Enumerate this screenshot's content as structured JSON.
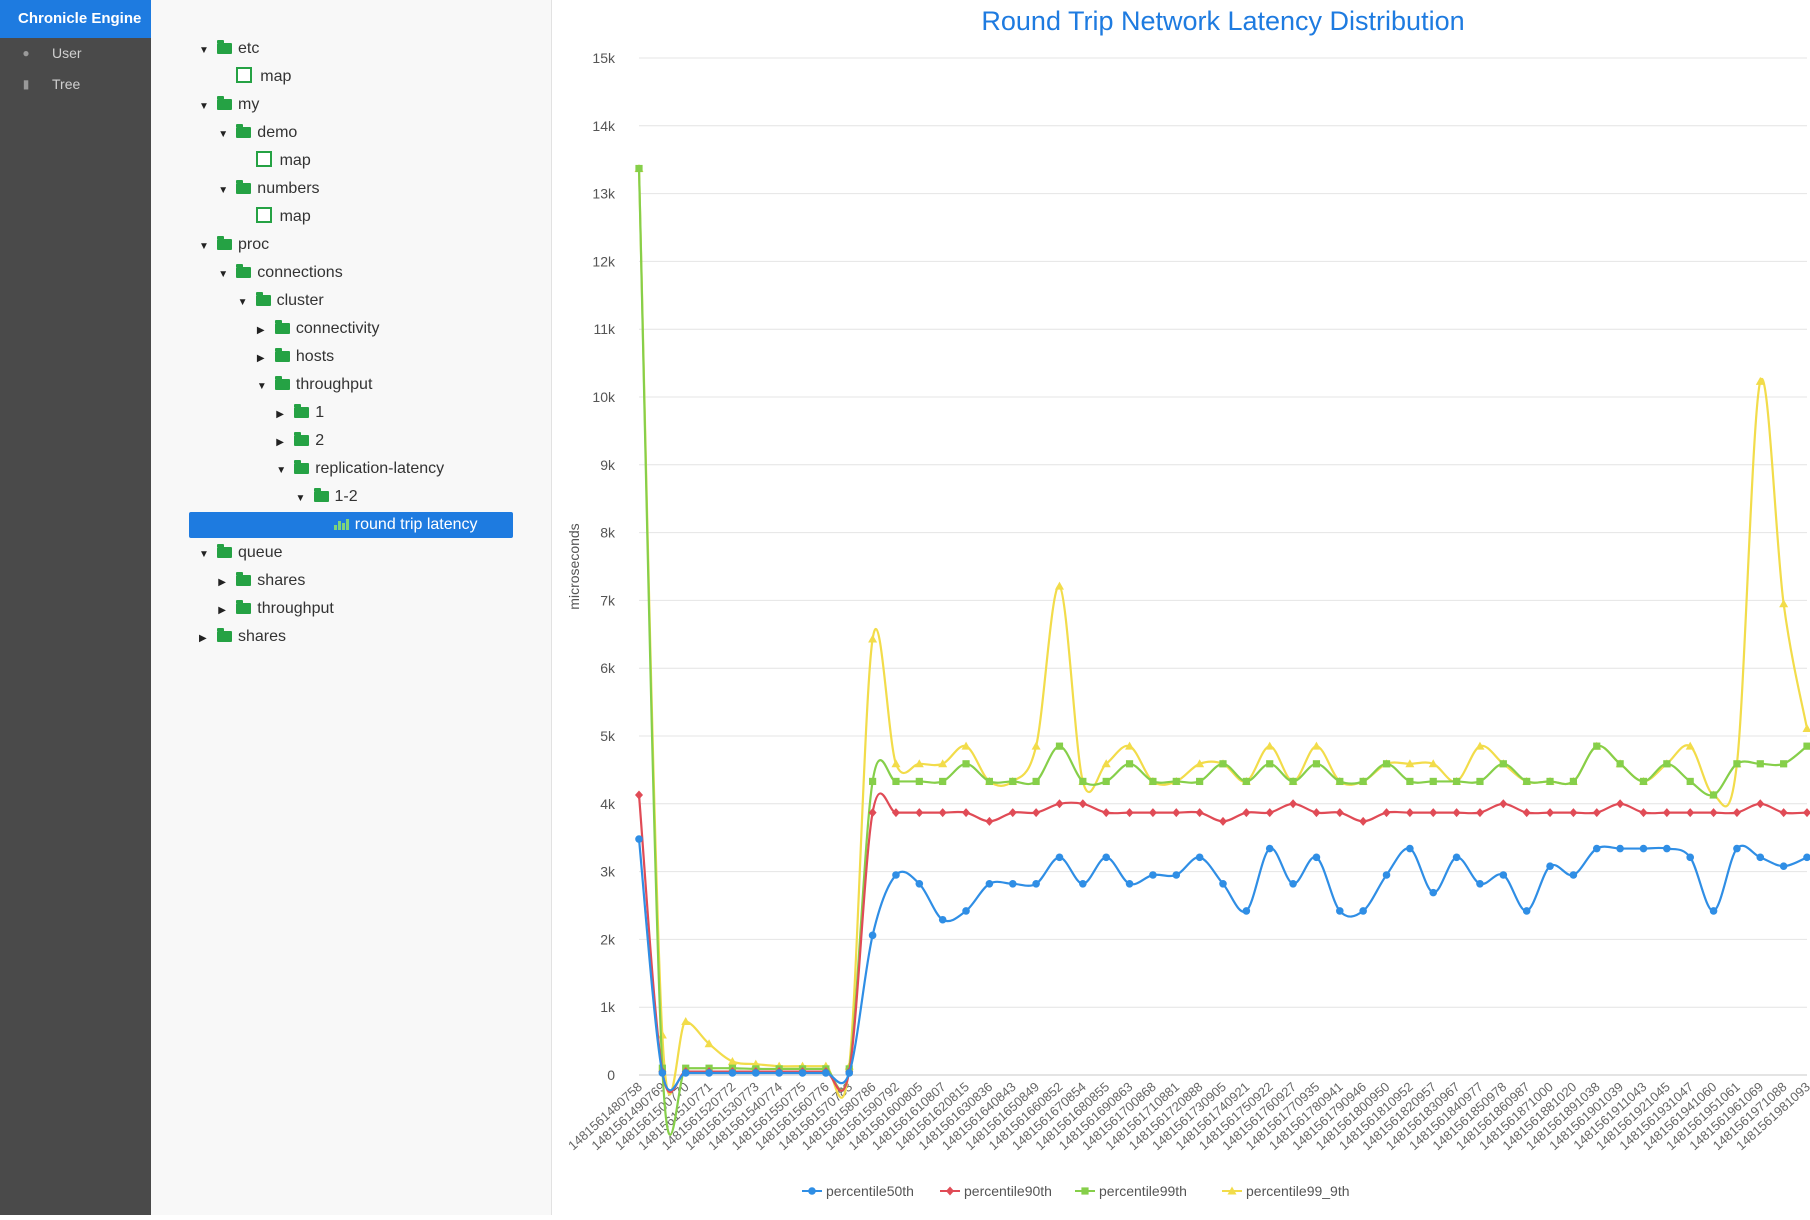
{
  "app": {
    "title": "Chronicle Engine"
  },
  "sidebar": {
    "items": [
      {
        "label": "User",
        "icon": "user-icon"
      },
      {
        "label": "Tree",
        "icon": "bar-chart-icon"
      }
    ]
  },
  "tree": {
    "nodes": [
      {
        "label": "etc",
        "level": 0,
        "type": "folder",
        "expanded": true
      },
      {
        "label": "map",
        "level": 1,
        "type": "map"
      },
      {
        "label": "my",
        "level": 0,
        "type": "folder",
        "expanded": true
      },
      {
        "label": "demo",
        "level": 1,
        "type": "folder",
        "expanded": true
      },
      {
        "label": "map",
        "level": 2,
        "type": "map"
      },
      {
        "label": "numbers",
        "level": 1,
        "type": "folder",
        "expanded": true
      },
      {
        "label": "map",
        "level": 2,
        "type": "map"
      },
      {
        "label": "proc",
        "level": 0,
        "type": "folder",
        "expanded": true
      },
      {
        "label": "connections",
        "level": 1,
        "type": "folder",
        "expanded": true
      },
      {
        "label": "cluster",
        "level": 2,
        "type": "folder",
        "expanded": true
      },
      {
        "label": "connectivity",
        "level": 3,
        "type": "folder",
        "expanded": false
      },
      {
        "label": "hosts",
        "level": 3,
        "type": "folder",
        "expanded": false
      },
      {
        "label": "throughput",
        "level": 3,
        "type": "folder",
        "expanded": true
      },
      {
        "label": "1",
        "level": 4,
        "type": "folder",
        "expanded": false
      },
      {
        "label": "2",
        "level": 4,
        "type": "folder",
        "expanded": false
      },
      {
        "label": "replication-latency",
        "level": 4,
        "type": "folder",
        "expanded": true
      },
      {
        "label": "1-2",
        "level": 5,
        "type": "folder",
        "expanded": true
      },
      {
        "label": "round trip latency",
        "level": 6,
        "type": "chart",
        "selected": true
      },
      {
        "label": "queue",
        "level": 0,
        "type": "folder",
        "expanded": true
      },
      {
        "label": "shares",
        "level": 1,
        "type": "folder",
        "expanded": false
      },
      {
        "label": "throughput",
        "level": 1,
        "type": "folder",
        "expanded": false
      },
      {
        "label": "shares",
        "level": 0,
        "type": "folder",
        "expanded": false
      }
    ]
  },
  "colors": {
    "accent": "#1e7be0",
    "sidebar": "#4a4a4a",
    "folder": "#25a244"
  },
  "chart_data": {
    "type": "line",
    "title": "Round Trip Network Latency Distribution",
    "ylabel": "microseconds",
    "xlabel": "",
    "ylim": [
      0,
      15000
    ],
    "yticks": [
      "0",
      "1k",
      "2k",
      "3k",
      "4k",
      "5k",
      "6k",
      "7k",
      "8k",
      "9k",
      "10k",
      "11k",
      "12k",
      "13k",
      "14k",
      "15k"
    ],
    "grid": true,
    "legend_position": "bottom",
    "categories": [
      "1481561480758",
      "1481561490769",
      "1481561500770",
      "1481561510771",
      "1481561520772",
      "1481561530773",
      "1481561540774",
      "1481561550775",
      "1481561560776",
      "1481561570783",
      "1481561580786",
      "1481561590792",
      "1481561600805",
      "1481561610807",
      "1481561620815",
      "1481561630836",
      "1481561640843",
      "1481561650849",
      "1481561660852",
      "1481561670854",
      "1481561680855",
      "1481561690863",
      "1481561700868",
      "1481561710881",
      "1481561720888",
      "1481561730905",
      "1481561740921",
      "1481561750922",
      "1481561760927",
      "1481561770935",
      "1481561780941",
      "1481561790946",
      "1481561800950",
      "1481561810952",
      "1481561820957",
      "1481561830967",
      "1481561840977",
      "1481561850978",
      "1481561860987",
      "1481561871000",
      "1481561881020",
      "1481561891038",
      "1481561901039",
      "1481561911043",
      "1481561921045",
      "1481561931047",
      "1481561941060",
      "1481561951061",
      "1481561961069",
      "1481561971088",
      "1481561981093"
    ],
    "series": [
      {
        "name": "percentile50th",
        "color": "#2f8ee5",
        "marker": "circle",
        "values": [
          3480,
          30,
          30,
          30,
          30,
          30,
          30,
          30,
          30,
          30,
          2060,
          2950,
          2820,
          2290,
          2420,
          2820,
          2820,
          2820,
          3210,
          2820,
          3210,
          2820,
          2950,
          2950,
          3210,
          2820,
          2420,
          3340,
          2820,
          3210,
          2420,
          2420,
          2950,
          3340,
          2690,
          3210,
          2820,
          2950,
          2420,
          3080,
          2950,
          3340,
          3340,
          3340,
          3340,
          3210,
          2420,
          3340,
          3210,
          3080,
          3210
        ]
      },
      {
        "name": "percentile90th",
        "color": "#e04b56",
        "marker": "diamond",
        "values": [
          4130,
          50,
          50,
          50,
          50,
          50,
          50,
          50,
          50,
          50,
          3870,
          3870,
          3870,
          3870,
          3870,
          3740,
          3870,
          3870,
          4000,
          4000,
          3870,
          3870,
          3870,
          3870,
          3870,
          3740,
          3870,
          3870,
          4000,
          3870,
          3870,
          3740,
          3870,
          3870,
          3870,
          3870,
          3870,
          4000,
          3870,
          3870,
          3870,
          3870,
          4000,
          3870,
          3870,
          3870,
          3870,
          3870,
          4000,
          3870,
          3870
        ]
      },
      {
        "name": "percentile99th",
        "color": "#86cf4a",
        "marker": "square",
        "values": [
          13370,
          100,
          100,
          100,
          100,
          90,
          90,
          90,
          90,
          90,
          4330,
          4330,
          4330,
          4330,
          4590,
          4330,
          4330,
          4330,
          4850,
          4330,
          4330,
          4590,
          4330,
          4330,
          4330,
          4590,
          4330,
          4590,
          4330,
          4590,
          4330,
          4330,
          4590,
          4330,
          4330,
          4330,
          4330,
          4590,
          4330,
          4330,
          4330,
          4850,
          4590,
          4330,
          4590,
          4330,
          4130,
          4590,
          4590,
          4590,
          4850
        ]
      },
      {
        "name": "percentile99_9th",
        "color": "#f2dc4a",
        "marker": "triangle",
        "values": [
          13370,
          590,
          790,
          460,
          200,
          160,
          130,
          130,
          130,
          130,
          6430,
          4590,
          4590,
          4590,
          4850,
          4330,
          4330,
          4850,
          7210,
          4330,
          4590,
          4850,
          4330,
          4330,
          4590,
          4590,
          4330,
          4850,
          4330,
          4850,
          4330,
          4330,
          4590,
          4590,
          4590,
          4330,
          4850,
          4590,
          4330,
          4330,
          4330,
          4850,
          4590,
          4330,
          4590,
          4850,
          4130,
          4590,
          10230,
          6950,
          5110
        ]
      }
    ]
  }
}
